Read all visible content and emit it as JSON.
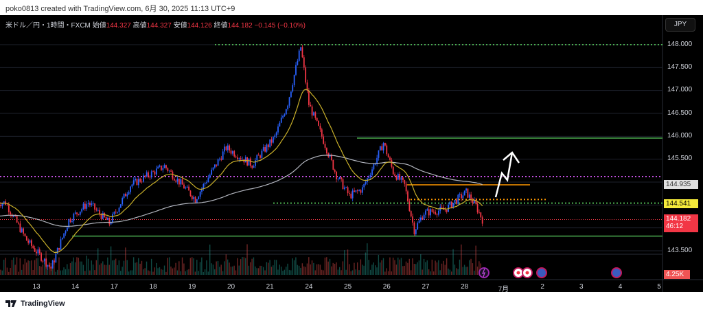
{
  "caption": "poko0813 created with TradingView.com, 6月 30, 2025 11:13 UTC+9",
  "legend": {
    "symbol": "米ドル／円・1時間・FXCM",
    "open_label": "始値",
    "open": "144.327",
    "high_label": "高値",
    "high": "144.327",
    "low_label": "安値",
    "low": "144.126",
    "close_label": "終値",
    "close": "144.182",
    "change": "−0.145 (−0.10%)"
  },
  "currency_button": "JPY",
  "price_axis": [
    "148.000",
    "147.500",
    "147.000",
    "146.500",
    "146.000",
    "145.500",
    "143.500"
  ],
  "price_tags": {
    "gray": "144.935",
    "yellow": "144.541",
    "last": "144.182",
    "countdown": "46:12",
    "volume": "4.25K"
  },
  "time_axis": [
    "13",
    "14",
    "17",
    "18",
    "19",
    "20",
    "21",
    "24",
    "25",
    "26",
    "27",
    "28",
    "7月",
    "2",
    "3",
    "4",
    "5"
  ],
  "footer": {
    "logo_text": "TradingView"
  },
  "colors": {
    "up": "#2962ff",
    "down": "#f23645",
    "ma_short": "#c9b02a",
    "ma_long": "#b2b5be",
    "green_line": "#4caf50",
    "orange_line": "#ff9800",
    "purple_dots": "#c24ee0"
  },
  "chart_data": {
    "type": "candlestick",
    "ylim": [
      143.2,
      148.4
    ],
    "close_keypoints": [
      {
        "day": "12",
        "hour": 5,
        "price": 144.55
      },
      {
        "day": "12",
        "hour": 18,
        "price": 143.73
      },
      {
        "day": "13",
        "hour": 9,
        "price": 143.12
      },
      {
        "day": "13",
        "hour": 20,
        "price": 144.17
      },
      {
        "day": "14",
        "hour": 8,
        "price": 144.55
      },
      {
        "day": "14",
        "hour": 21,
        "price": 144.1
      },
      {
        "day": "17",
        "hour": 10,
        "price": 144.93
      },
      {
        "day": "18",
        "hour": 7,
        "price": 145.35
      },
      {
        "day": "19",
        "hour": 2,
        "price": 144.63
      },
      {
        "day": "19",
        "hour": 21,
        "price": 145.75
      },
      {
        "day": "20",
        "hour": 13,
        "price": 145.38
      },
      {
        "day": "21",
        "hour": 3,
        "price": 145.98
      },
      {
        "day": "21",
        "hour": 11,
        "price": 146.73
      },
      {
        "day": "21",
        "hour": 19,
        "price": 147.95
      },
      {
        "day": "24",
        "hour": 0,
        "price": 146.7
      },
      {
        "day": "24",
        "hour": 8,
        "price": 146.0
      },
      {
        "day": "24",
        "hour": 17,
        "price": 145.15
      },
      {
        "day": "25",
        "hour": 1,
        "price": 144.7
      },
      {
        "day": "25",
        "hour": 9,
        "price": 144.85
      },
      {
        "day": "25",
        "hour": 16,
        "price": 145.37
      },
      {
        "day": "25",
        "hour": 22,
        "price": 145.86
      },
      {
        "day": "26",
        "hour": 4,
        "price": 145.22
      },
      {
        "day": "26",
        "hour": 11,
        "price": 144.93
      },
      {
        "day": "26",
        "hour": 17,
        "price": 143.95
      },
      {
        "day": "26",
        "hour": 23,
        "price": 144.33
      },
      {
        "day": "27",
        "hour": 12,
        "price": 144.4
      },
      {
        "day": "28",
        "hour": 1,
        "price": 144.78
      },
      {
        "day": "28",
        "hour": 7,
        "price": 144.48
      },
      {
        "day": "28",
        "hour": 11,
        "price": 144.18
      }
    ],
    "levels": [
      {
        "price": 148.0,
        "style": "dotted",
        "color": "green"
      },
      {
        "price": 145.96,
        "style": "solid",
        "color": "green"
      },
      {
        "price": 145.12,
        "style": "dotted",
        "color": "purple"
      },
      {
        "price": 144.94,
        "style": "solid",
        "color": "orange"
      },
      {
        "price": 144.62,
        "style": "dotted",
        "color": "orange"
      },
      {
        "price": 144.541,
        "style": "dotted",
        "color": "green"
      },
      {
        "price": 144.182,
        "style": "dotted",
        "color": "red"
      },
      {
        "price": 143.82,
        "style": "solid",
        "color": "green"
      }
    ]
  }
}
